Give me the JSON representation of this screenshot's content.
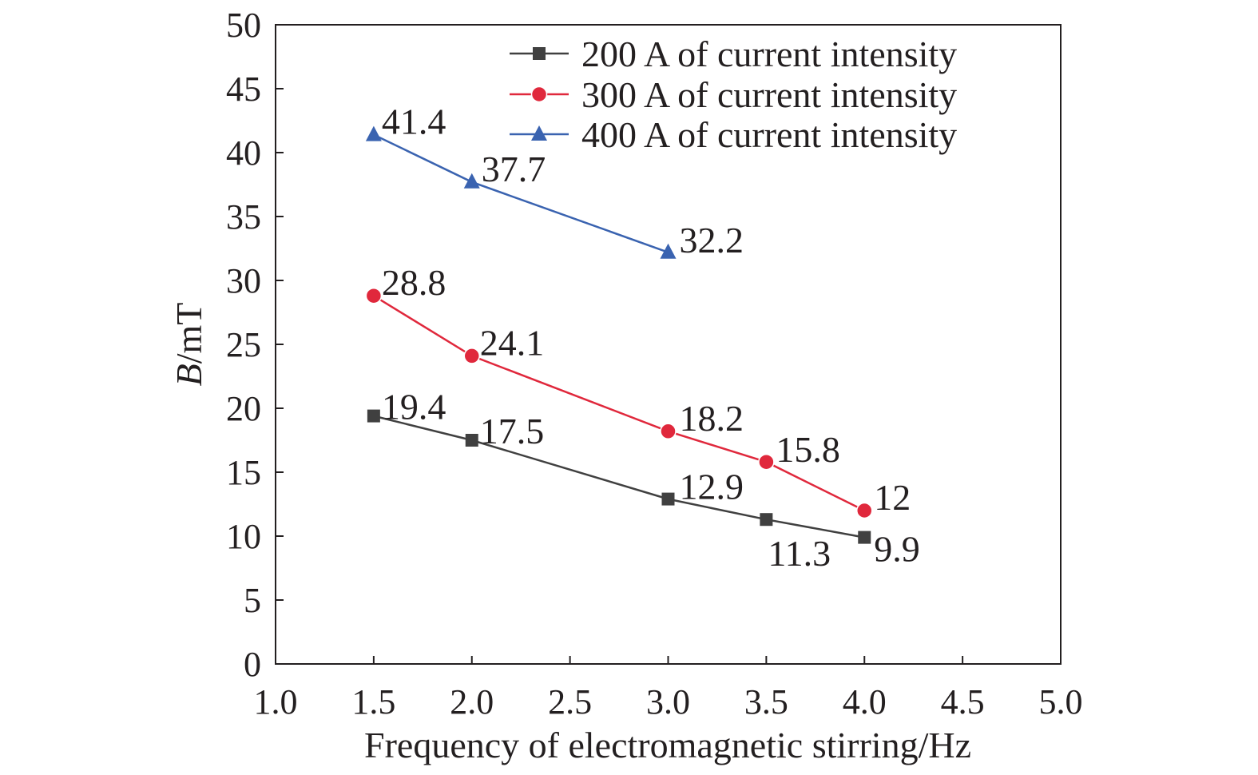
{
  "chart_data": {
    "type": "line",
    "title": "",
    "xlabel": "Frequency of electromagnetic stirring/Hz",
    "ylabel_italic": "B",
    "ylabel_rest": "/mT",
    "xlim": [
      1.0,
      5.0
    ],
    "ylim": [
      0,
      50
    ],
    "x_ticks": [
      "1.0",
      "1.5",
      "2.0",
      "2.5",
      "3.0",
      "3.5",
      "4.0",
      "4.5",
      "5.0"
    ],
    "y_ticks": [
      "0",
      "5",
      "10",
      "15",
      "20",
      "25",
      "30",
      "35",
      "40",
      "45",
      "50"
    ],
    "grid": false,
    "legend_position": "top-right",
    "series": [
      {
        "name": "200 A of current intensity",
        "color": "#404040",
        "marker": "square",
        "x": [
          1.5,
          2.0,
          3.0,
          3.5,
          4.0
        ],
        "y": [
          19.4,
          17.5,
          12.9,
          11.3,
          9.9
        ],
        "labels": [
          "19.4",
          "17.5",
          "12.9",
          "11.3",
          "9.9"
        ]
      },
      {
        "name": "300 A of current intensity",
        "color": "#e0283c",
        "marker": "circle",
        "x": [
          1.5,
          2.0,
          3.0,
          3.5,
          4.0
        ],
        "y": [
          28.8,
          24.1,
          18.2,
          15.8,
          12
        ],
        "labels": [
          "28.8",
          "24.1",
          "18.2",
          "15.8",
          "12"
        ]
      },
      {
        "name": "400 A of current intensity",
        "color": "#3a63b0",
        "marker": "triangle",
        "x": [
          1.5,
          2.0,
          3.0
        ],
        "y": [
          41.4,
          37.7,
          32.2
        ],
        "labels": [
          "41.4",
          "37.7",
          "32.2"
        ]
      }
    ]
  }
}
